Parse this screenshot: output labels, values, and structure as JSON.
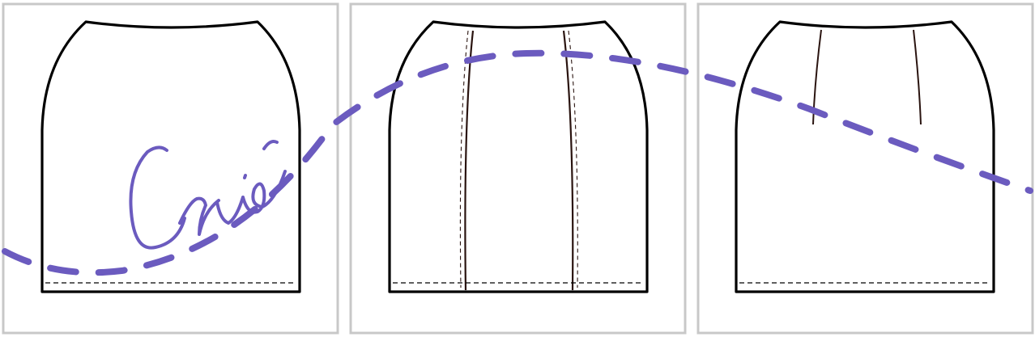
{
  "panels": [
    {
      "id": "front-view"
    },
    {
      "id": "panelled-view"
    },
    {
      "id": "back-darts-view"
    }
  ],
  "colors": {
    "panel_border": "#c8c8c8",
    "outline": "#000000",
    "seam": "#2a1410",
    "overlay_stroke": "#6b5bbf",
    "background": "#ffffff"
  },
  "overlay": {
    "signature": "Crie",
    "style": "dashed-curve-with-handwritten-signature"
  }
}
